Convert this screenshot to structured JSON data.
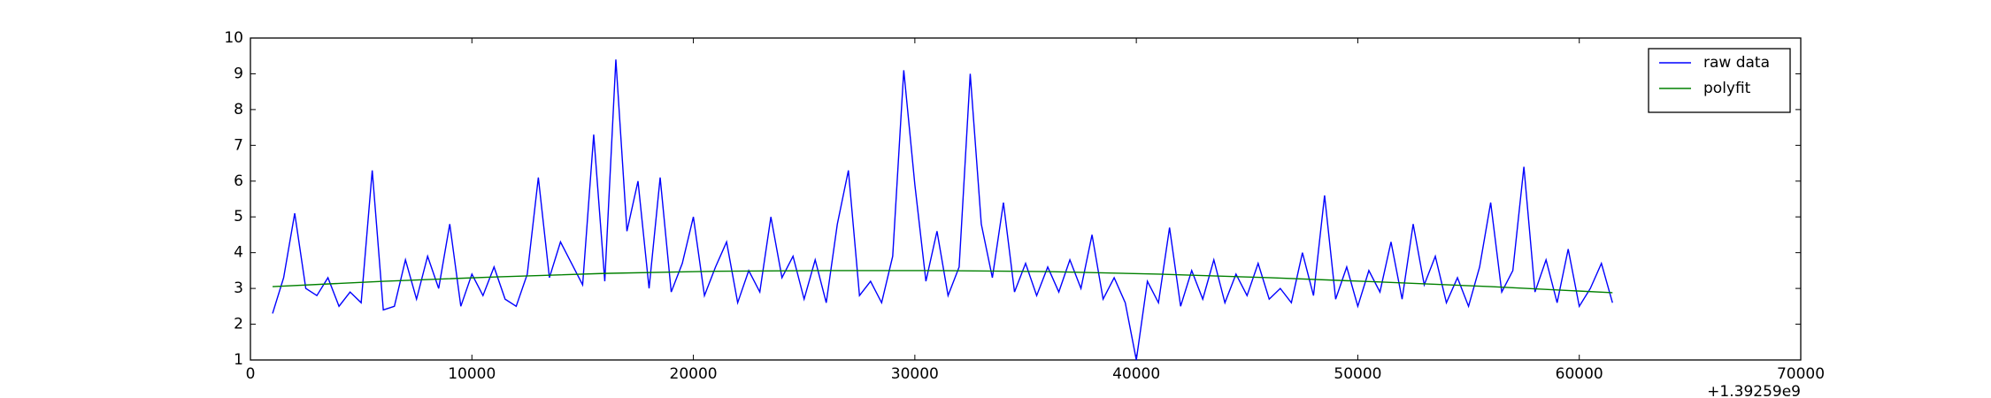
{
  "chart_data": {
    "type": "line",
    "x_offset_label": "+1.39259e9",
    "xlim": [
      0,
      70000
    ],
    "xticks": [
      0,
      10000,
      20000,
      30000,
      40000,
      50000,
      60000,
      70000
    ],
    "ylim": [
      1,
      10
    ],
    "yticks": [
      1,
      2,
      3,
      4,
      5,
      6,
      7,
      8,
      9,
      10
    ],
    "legend": "upper right",
    "series": [
      {
        "name": "raw data",
        "color": "#0000ff",
        "x": [
          1000,
          1500,
          2000,
          2500,
          3000,
          3500,
          4000,
          4500,
          5000,
          5500,
          6000,
          6500,
          7000,
          7500,
          8000,
          8500,
          9000,
          9500,
          10000,
          10500,
          11000,
          11500,
          12000,
          12500,
          13000,
          13500,
          14000,
          14500,
          15000,
          15500,
          16000,
          16500,
          17000,
          17500,
          18000,
          18500,
          19000,
          19500,
          20000,
          20500,
          21000,
          21500,
          22000,
          22500,
          23000,
          23500,
          24000,
          24500,
          25000,
          25500,
          26000,
          26500,
          27000,
          27500,
          28000,
          28500,
          29000,
          29500,
          30000,
          30500,
          31000,
          31500,
          32000,
          32500,
          33000,
          33500,
          34000,
          34500,
          35000,
          35500,
          36000,
          36500,
          37000,
          37500,
          38000,
          38500,
          39000,
          39500,
          40000,
          40500,
          41000,
          41500,
          42000,
          42500,
          43000,
          43500,
          44000,
          44500,
          45000,
          45500,
          46000,
          46500,
          47000,
          47500,
          48000,
          48500,
          49000,
          49500,
          50000,
          50500,
          51000,
          51500,
          52000,
          52500,
          53000,
          53500,
          54000,
          54500,
          55000,
          55500,
          56000,
          56500,
          57000,
          57500,
          58000,
          58500,
          59000,
          59500,
          60000,
          60500,
          61000,
          61500
        ],
        "values": [
          2.3,
          3.3,
          5.1,
          3.0,
          2.8,
          3.3,
          2.5,
          2.9,
          2.6,
          6.3,
          2.4,
          2.5,
          3.8,
          2.7,
          3.9,
          3.0,
          4.8,
          2.5,
          3.4,
          2.8,
          3.6,
          2.7,
          2.5,
          3.4,
          6.1,
          3.3,
          4.3,
          3.7,
          3.1,
          7.3,
          3.2,
          9.4,
          4.6,
          6.0,
          3.0,
          6.1,
          2.9,
          3.7,
          5.0,
          2.8,
          3.6,
          4.3,
          2.6,
          3.5,
          2.9,
          5.0,
          3.3,
          3.9,
          2.7,
          3.8,
          2.6,
          4.8,
          6.3,
          2.8,
          3.2,
          2.6,
          3.9,
          9.1,
          5.9,
          3.2,
          4.6,
          2.8,
          3.6,
          9.0,
          4.8,
          3.3,
          5.4,
          2.9,
          3.7,
          2.8,
          3.6,
          2.9,
          3.8,
          3.0,
          4.5,
          2.7,
          3.3,
          2.6,
          1.0,
          3.2,
          2.6,
          4.7,
          2.5,
          3.5,
          2.7,
          3.8,
          2.6,
          3.4,
          2.8,
          3.7,
          2.7,
          3.0,
          2.6,
          4.0,
          2.8,
          5.6,
          2.7,
          3.6,
          2.5,
          3.5,
          2.9,
          4.3,
          2.7,
          4.8,
          3.1,
          3.9,
          2.6,
          3.3,
          2.5,
          3.6,
          5.4,
          2.9,
          3.5,
          6.4,
          2.9,
          3.8,
          2.6,
          4.1,
          2.5,
          3.0,
          3.7,
          2.6
        ]
      },
      {
        "name": "polyfit",
        "color": "#008000",
        "x": [
          1000,
          6000,
          11000,
          16000,
          21000,
          26000,
          31000,
          36000,
          41000,
          46000,
          51000,
          56000,
          61500
        ],
        "values": [
          3.05,
          3.2,
          3.32,
          3.42,
          3.48,
          3.5,
          3.5,
          3.47,
          3.4,
          3.3,
          3.18,
          3.05,
          2.88
        ]
      }
    ]
  }
}
